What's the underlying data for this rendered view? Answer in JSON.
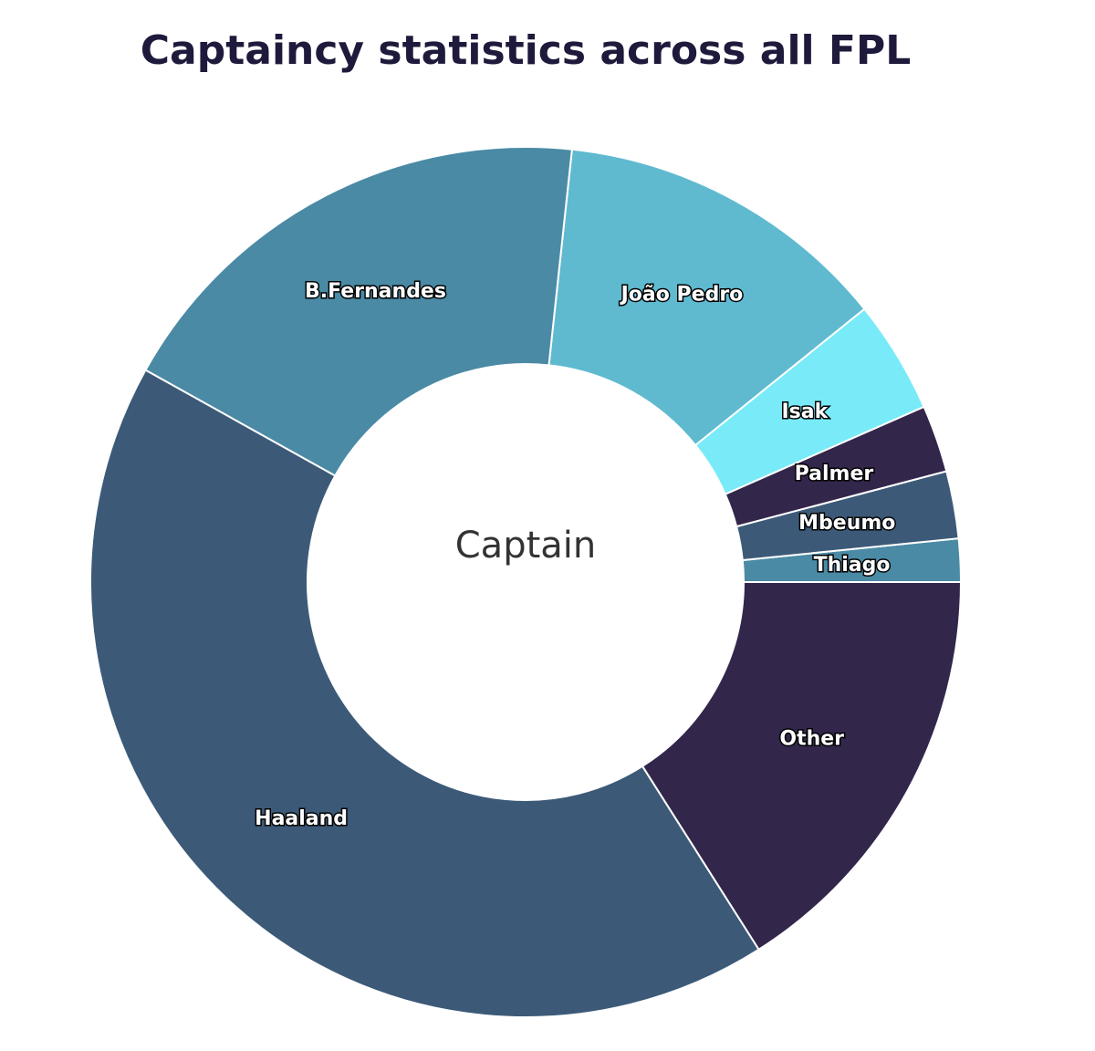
{
  "chart_data": {
    "type": "donut",
    "title": "Captaincy statistics across all FPL",
    "center_label": "Captain",
    "categories": [
      "Thiago",
      "Mbeumo",
      "Palmer",
      "Isak",
      "João Pedro",
      "B.Fernandes",
      "Haaland",
      "Other"
    ],
    "values": [
      1.6,
      2.5,
      2.5,
      4.2,
      12.5,
      18.6,
      42.1,
      16.0
    ],
    "colors": [
      "#4a8aa5",
      "#3c5a78",
      "#33264b",
      "#78eaf8",
      "#5fbad0",
      "#4a8aa5",
      "#3c5a78",
      "#33264b"
    ]
  }
}
